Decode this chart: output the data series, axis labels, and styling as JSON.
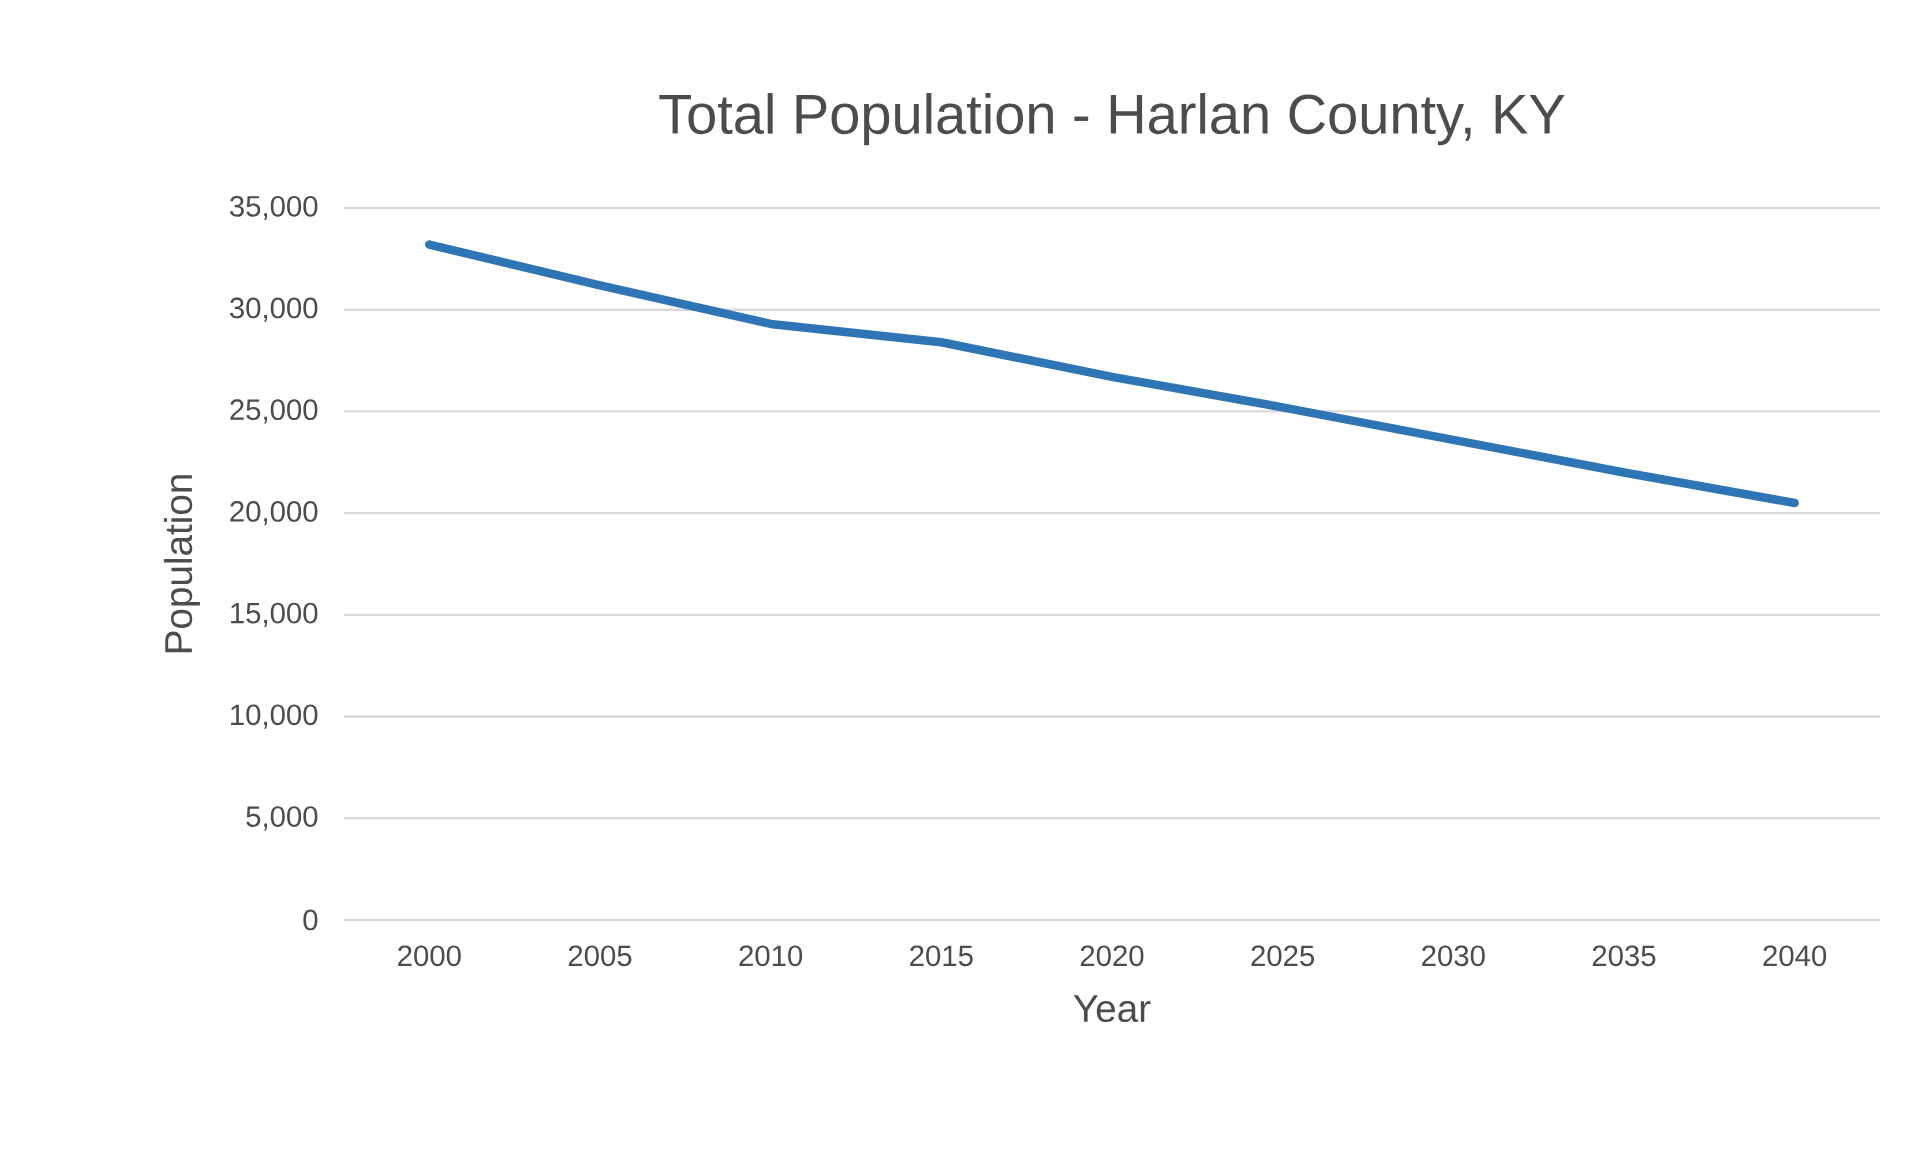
{
  "chart_data": {
    "type": "line",
    "title": "Total Population - Harlan County, KY",
    "xlabel": "Year",
    "ylabel": "Population",
    "categories": [
      "2000",
      "2005",
      "2010",
      "2015",
      "2020",
      "2025",
      "2030",
      "2035",
      "2040"
    ],
    "series": [
      {
        "color": "#2e75b6",
        "values": [
          33200,
          31200,
          29300,
          28400,
          26700,
          25200,
          23600,
          22000,
          20500
        ]
      }
    ],
    "ylim": [
      0,
      35000
    ],
    "yticks": [
      {
        "value": 0,
        "label": "0"
      },
      {
        "value": 5000,
        "label": "5,000"
      },
      {
        "value": 10000,
        "label": "10,000"
      },
      {
        "value": 15000,
        "label": "15,000"
      },
      {
        "value": 20000,
        "label": "20,000"
      },
      {
        "value": 25000,
        "label": "25,000"
      },
      {
        "value": 30000,
        "label": "30,000"
      },
      {
        "value": 35000,
        "label": "35,000"
      }
    ],
    "grid": "y"
  }
}
